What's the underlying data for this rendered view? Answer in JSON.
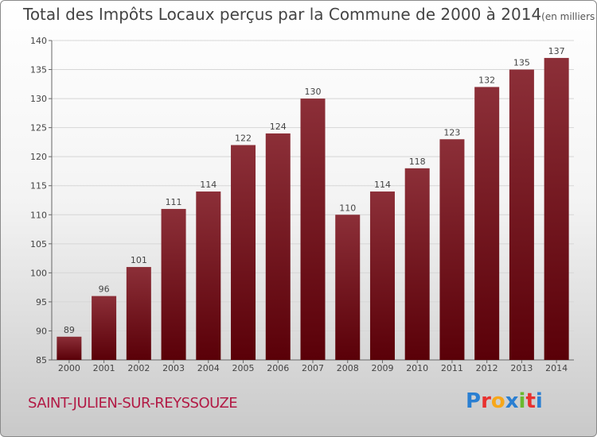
{
  "header": {
    "title": "Total des Impôts Locaux perçus par la Commune de 2000 à 2014",
    "unit": "(en milliers d'€)"
  },
  "footer": {
    "commune": "SAINT-JULIEN-SUR-REYSSOUZE",
    "logo": "Proxiti",
    "logo_colors": [
      "#2a7fd2",
      "#e8312f",
      "#f7a71a",
      "#2a7fd2",
      "#6ab82e",
      "#e8312f",
      "#2a7fd2"
    ]
  },
  "chart_data": {
    "type": "bar",
    "title": "Total des Impôts Locaux perçus par la Commune de 2000 à 2014",
    "xlabel": "",
    "ylabel": "",
    "categories": [
      "2000",
      "2001",
      "2002",
      "2003",
      "2004",
      "2005",
      "2006",
      "2007",
      "2008",
      "2009",
      "2010",
      "2011",
      "2012",
      "2013",
      "2014"
    ],
    "values": [
      89,
      96,
      101,
      111,
      114,
      122,
      124,
      130,
      110,
      114,
      118,
      123,
      132,
      135,
      137
    ],
    "ylim": [
      85,
      140
    ],
    "yticks": [
      85,
      90,
      95,
      100,
      105,
      110,
      115,
      120,
      125,
      130,
      135,
      140
    ],
    "grid": true,
    "bar_color": "#7a1a22"
  }
}
